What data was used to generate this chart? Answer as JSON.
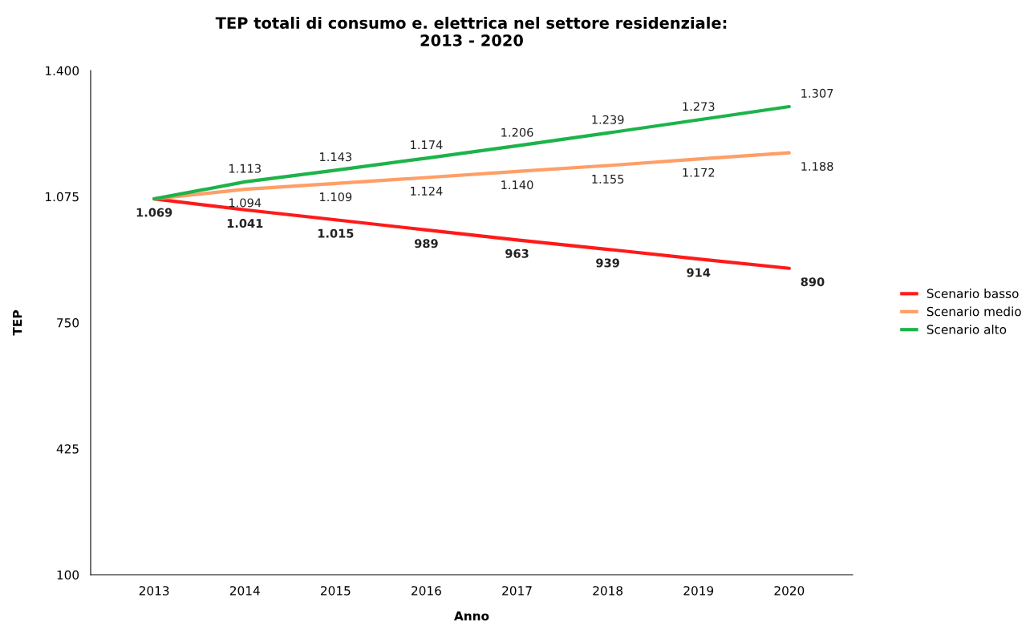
{
  "chart_data": {
    "type": "line",
    "title": "TEP totali di consumo e. elettrica nel settore residenziale:\n2013 - 2020",
    "xlabel": "Anno",
    "ylabel": "TEP",
    "categories": [
      "2013",
      "2014",
      "2015",
      "2016",
      "2017",
      "2018",
      "2019",
      "2020"
    ],
    "series": [
      {
        "name": "Scenario basso",
        "color": "#ff1a1a",
        "values": [
          1069,
          1041,
          1015,
          989,
          963,
          939,
          914,
          890
        ],
        "value_labels": [
          "1.069",
          "1.041",
          "1.015",
          "989",
          "963",
          "939",
          "914",
          "890"
        ]
      },
      {
        "name": "Scenario medio",
        "color": "#ff9e66",
        "values": [
          1069,
          1094,
          1109,
          1124,
          1140,
          1155,
          1172,
          1188
        ],
        "value_labels": [
          null,
          "1.094",
          "1.109",
          "1.124",
          "1.140",
          "1.155",
          "1.172",
          "1.188"
        ]
      },
      {
        "name": "Scenario alto",
        "color": "#1db34a",
        "values": [
          1069,
          1113,
          1143,
          1174,
          1206,
          1239,
          1273,
          1307
        ],
        "value_labels": [
          null,
          "1.113",
          "1.143",
          "1.174",
          "1.206",
          "1.239",
          "1.273",
          "1.307"
        ]
      }
    ],
    "ylim": [
      100,
      1400
    ],
    "yticks": [
      {
        "value": 100,
        "label": "100"
      },
      {
        "value": 425,
        "label": "425"
      },
      {
        "value": 750,
        "label": "750"
      },
      {
        "value": 1075,
        "label": "1.075"
      },
      {
        "value": 1400,
        "label": "1.400"
      }
    ],
    "grid": false,
    "legend": "right",
    "marker": "none",
    "line_style": "solid"
  }
}
